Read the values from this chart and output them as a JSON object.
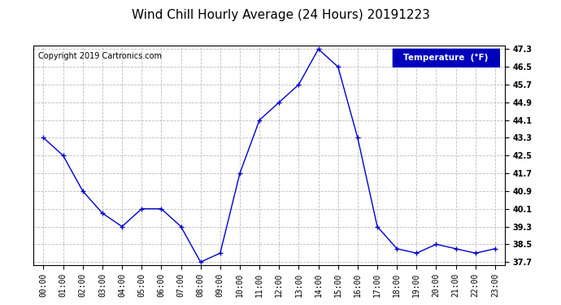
{
  "title": "Wind Chill Hourly Average (24 Hours) 20191223",
  "copyright_text": "Copyright 2019 Cartronics.com",
  "legend_label": "Temperature  (°F)",
  "x_labels": [
    "00:00",
    "01:00",
    "02:00",
    "03:00",
    "04:00",
    "05:00",
    "06:00",
    "07:00",
    "08:00",
    "09:00",
    "10:00",
    "11:00",
    "12:00",
    "13:00",
    "14:00",
    "15:00",
    "16:00",
    "17:00",
    "18:00",
    "19:00",
    "20:00",
    "21:00",
    "22:00",
    "23:00"
  ],
  "y_values": [
    43.3,
    42.5,
    40.9,
    39.9,
    39.3,
    40.1,
    40.1,
    39.3,
    37.7,
    38.1,
    41.7,
    44.1,
    44.9,
    45.7,
    47.3,
    46.5,
    43.3,
    39.3,
    38.3,
    38.1,
    38.5,
    38.3,
    38.1,
    38.3
  ],
  "ylim_min": 37.7,
  "ylim_max": 47.3,
  "yticks": [
    37.7,
    38.5,
    39.3,
    40.1,
    40.9,
    41.7,
    42.5,
    43.3,
    44.1,
    44.9,
    45.7,
    46.5,
    47.3
  ],
  "line_color": "#0000cc",
  "marker": "+",
  "marker_size": 4,
  "background_color": "#ffffff",
  "plot_bg_color": "#ffffff",
  "grid_color": "#bbbbbb",
  "title_fontsize": 11,
  "copyright_fontsize": 7,
  "tick_fontsize": 7,
  "legend_bg_color": "#0000bb",
  "legend_text_color": "#ffffff",
  "legend_fontsize": 7.5
}
